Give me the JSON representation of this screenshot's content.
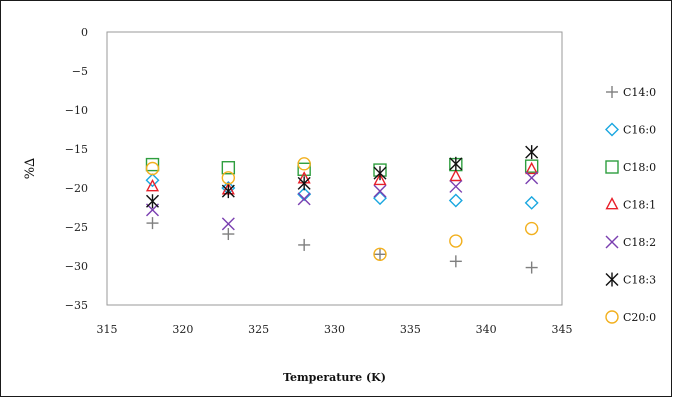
{
  "chart_data": {
    "type": "scatter",
    "title": "",
    "xlabel": "Temperature (K)",
    "ylabel": "%∆",
    "xlim": [
      315,
      345
    ],
    "ylim": [
      -35,
      0
    ],
    "x_ticks": [
      "315",
      "320",
      "325",
      "330",
      "335",
      "340",
      "345"
    ],
    "y_ticks": [
      "0",
      "-5",
      "-10",
      "-15",
      "-20",
      "-25",
      "-30",
      "-35"
    ],
    "grid": false,
    "legend_position": "right",
    "x": [
      318,
      323,
      328,
      333,
      338,
      343
    ],
    "series": [
      {
        "name": "C14:0",
        "marker": "plus",
        "color": "#7f7f7f",
        "values": [
          -24.5,
          -25.9,
          -27.3,
          -28.5,
          -29.4,
          -30.2
        ]
      },
      {
        "name": "C16:0",
        "marker": "diamond",
        "color": "#1aa7e0",
        "values": [
          -19.0,
          -20.0,
          -20.8,
          -21.3,
          -21.6,
          -21.9
        ]
      },
      {
        "name": "C18:0",
        "marker": "square",
        "color": "#2e9e3e",
        "values": [
          -17.0,
          -17.4,
          -17.6,
          -17.7,
          -17.0,
          -17.2
        ]
      },
      {
        "name": "C18:1",
        "marker": "triangle",
        "color": "#e8202a",
        "values": [
          -19.8,
          -20.2,
          -18.8,
          -19.0,
          -18.5,
          -17.6
        ]
      },
      {
        "name": "C18:2",
        "marker": "x",
        "color": "#7a3fb0",
        "values": [
          -22.8,
          -24.6,
          -21.4,
          -20.4,
          -19.8,
          -18.7
        ]
      },
      {
        "name": "C18:3",
        "marker": "asterisk",
        "color": "#111111",
        "values": [
          -21.7,
          -20.4,
          -19.4,
          -18.1,
          -16.9,
          -15.4
        ]
      },
      {
        "name": "C20:0",
        "marker": "circle",
        "color": "#f2b01e",
        "values": [
          -17.5,
          -18.7,
          -16.9,
          -28.5,
          -26.8,
          -25.2
        ]
      }
    ]
  }
}
